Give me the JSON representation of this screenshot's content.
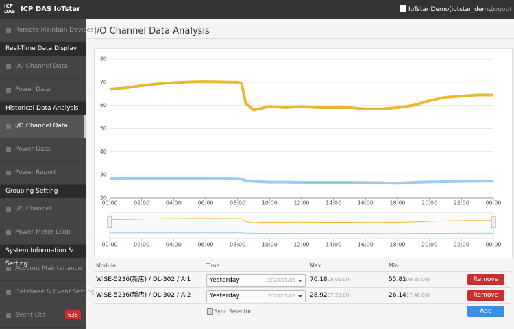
{
  "header": {
    "logo": "ICP DAS",
    "app_name": "ICP DAS IoTstar",
    "user": "IoTstar Demo(iotstar_demo)",
    "logout": "Logout"
  },
  "sidebar": {
    "top_item": "Remote Maintain Devices",
    "groups": [
      {
        "title": "Real-Time Data Display",
        "items": [
          "I/O Channel Data",
          "Power Data"
        ]
      },
      {
        "title": "Historical Data Analysis",
        "items": [
          "I/O Channel Data",
          "Power Data",
          "Power Report"
        ]
      },
      {
        "title": "Grouping Setting",
        "items": [
          "I/O Channel",
          "Power Meter Loop"
        ]
      },
      {
        "title": "System Information & Setting",
        "items": [
          "Account Maintenance",
          "Database & Event Setting",
          "Event List"
        ]
      }
    ],
    "event_badge": "635"
  },
  "page_title": "I/O Channel Data Analysis",
  "chart_data": {
    "type": "line",
    "x": [
      0,
      1,
      2,
      3,
      4,
      5,
      6,
      7,
      8,
      8.25,
      8.5,
      9,
      10,
      11,
      12,
      13,
      14,
      15,
      16,
      17,
      18,
      19,
      20,
      21,
      22,
      23,
      24
    ],
    "series": [
      {
        "color": "#e8b830",
        "values": [
          67,
          67.5,
          68.5,
          69.3,
          69.8,
          70.1,
          70.2,
          70.1,
          70,
          69.5,
          61,
          58,
          59.5,
          59,
          59.5,
          59,
          59,
          59,
          58.5,
          58.5,
          59,
          60,
          62,
          63.5,
          64,
          64.5,
          64.5
        ]
      },
      {
        "color": "#9ccbed",
        "values": [
          28.5,
          28.6,
          28.6,
          28.6,
          28.6,
          28.6,
          28.6,
          28.6,
          28.5,
          28.3,
          27.5,
          27.2,
          26.9,
          26.9,
          26.8,
          26.8,
          26.8,
          26.8,
          26.7,
          26.6,
          26.4,
          26.8,
          27,
          27.1,
          27.2,
          27.3,
          27.3
        ]
      }
    ],
    "xlim": [
      0,
      24
    ],
    "xticks": [
      {
        "value": 0,
        "label": "00:00"
      },
      {
        "value": 2,
        "label": "02:00"
      },
      {
        "value": 4,
        "label": "04:00"
      },
      {
        "value": 6,
        "label": "06:00"
      },
      {
        "value": 8,
        "label": "08:00"
      },
      {
        "value": 10,
        "label": "10:00"
      },
      {
        "value": 12,
        "label": "12:00"
      },
      {
        "value": 14,
        "label": "14:00"
      },
      {
        "value": 16,
        "label": "16:00"
      },
      {
        "value": 18,
        "label": "18:00"
      },
      {
        "value": 20,
        "label": "20:00"
      },
      {
        "value": 22,
        "label": "22:00"
      },
      {
        "value": 24,
        "label": "00:00"
      }
    ],
    "ylim": [
      20,
      80
    ],
    "yticks": [
      20,
      30,
      40,
      50,
      60,
      70,
      80
    ],
    "grid": true
  },
  "table": {
    "headers": [
      "Module",
      "Time",
      "Max",
      "Min"
    ],
    "rows": [
      [
        "WISE-5236(新店) / DL-302 / AI1",
        "Yesterday",
        "2020/05/06",
        "70.18",
        "(08:01:00)",
        "55.81",
        "(09:35:00)",
        "Remove"
      ],
      [
        "WISE-5236(新店) / DL-302 / AI2",
        "Yesterday",
        "2020/05/06",
        "28.92",
        "(07:29:00)",
        "26.14",
        "(17:46:00)",
        "Remove"
      ]
    ],
    "sync_label": "Sync Selector",
    "add_button": "Add"
  }
}
